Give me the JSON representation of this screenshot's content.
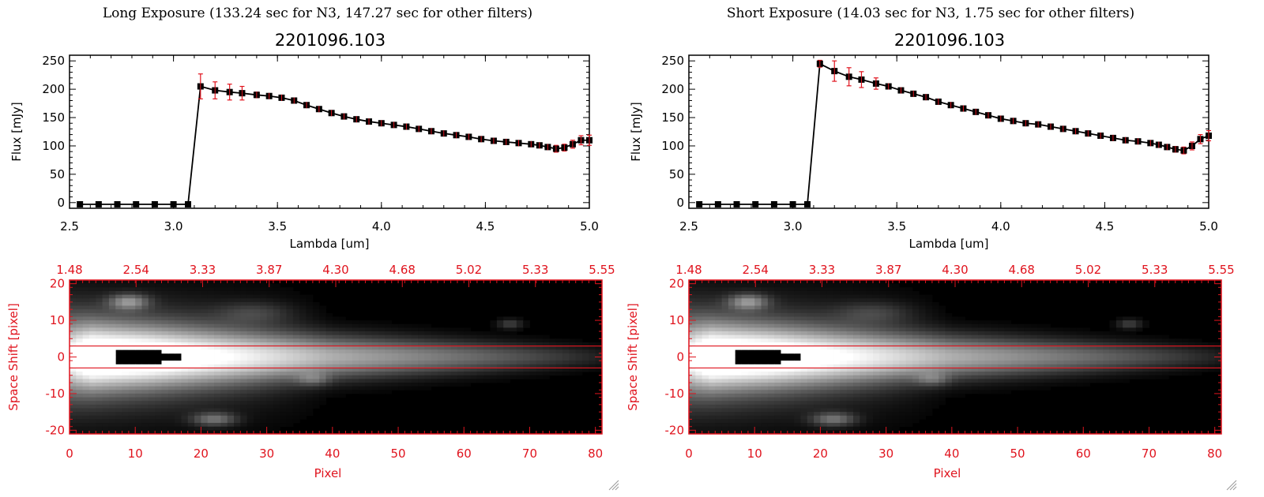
{
  "colors": {
    "error_bar": "#e0141e",
    "line": "#000000",
    "red_axis": "#e0141e",
    "image_bg": "#000000"
  },
  "panels": [
    {
      "heading": "Long Exposure (133.24 sec for N3, 147.27 sec for other filters)",
      "plot_title": "2201096.103",
      "spectrum": {
        "ylabel": "Flux [mJy]",
        "xlabel": "Lambda [um]",
        "x_ticks": [
          "2.5",
          "3.0",
          "3.5",
          "4.0",
          "4.5",
          "5.0"
        ],
        "y_ticks": [
          "0",
          "50",
          "100",
          "150",
          "200",
          "250"
        ]
      },
      "image": {
        "top_ticks": [
          "1.48",
          "2.54",
          "3.33",
          "3.87",
          "4.30",
          "4.68",
          "5.02",
          "5.33",
          "5.55"
        ],
        "y_ticks": [
          "20",
          "10",
          "0",
          "-10",
          "-20"
        ],
        "x_ticks": [
          "0",
          "10",
          "20",
          "30",
          "40",
          "50",
          "60",
          "70",
          "80"
        ],
        "ylabel": "Space Shift [pixel]",
        "xlabel": "Pixel"
      }
    },
    {
      "heading": "Short Exposure (14.03 sec for N3, 1.75 sec for other filters)",
      "plot_title": "2201096.103",
      "spectrum": {
        "ylabel": "Flux [mJy]",
        "xlabel": "Lambda [um]",
        "x_ticks": [
          "2.5",
          "3.0",
          "3.5",
          "4.0",
          "4.5",
          "5.0"
        ],
        "y_ticks": [
          "0",
          "50",
          "100",
          "150",
          "200",
          "250"
        ]
      },
      "image": {
        "top_ticks": [
          "1.48",
          "2.54",
          "3.33",
          "3.87",
          "4.30",
          "4.68",
          "5.02",
          "5.33",
          "5.55"
        ],
        "y_ticks": [
          "20",
          "10",
          "0",
          "-10",
          "-20"
        ],
        "x_ticks": [
          "0",
          "10",
          "20",
          "30",
          "40",
          "50",
          "60",
          "70",
          "80"
        ],
        "ylabel": "Space Shift [pixel]",
        "xlabel": "Pixel"
      }
    }
  ],
  "chart_data": [
    {
      "type": "line",
      "title": "2201096.103",
      "xlabel": "Lambda [um]",
      "ylabel": "Flux [mJy]",
      "xlim": [
        2.5,
        5.0
      ],
      "ylim": [
        -10,
        260
      ],
      "x": [
        2.55,
        2.64,
        2.73,
        2.82,
        2.91,
        3.0,
        3.07,
        3.13,
        3.2,
        3.27,
        3.33,
        3.4,
        3.46,
        3.52,
        3.58,
        3.64,
        3.7,
        3.76,
        3.82,
        3.88,
        3.94,
        4.0,
        4.06,
        4.12,
        4.18,
        4.24,
        4.3,
        4.36,
        4.42,
        4.48,
        4.54,
        4.6,
        4.66,
        4.72,
        4.76,
        4.8,
        4.84,
        4.88,
        4.92,
        4.96,
        5.0
      ],
      "y": [
        -3,
        -3,
        -3,
        -3,
        -3,
        -3,
        -3,
        205,
        198,
        195,
        193,
        190,
        188,
        185,
        180,
        172,
        165,
        158,
        152,
        147,
        143,
        140,
        137,
        134,
        130,
        126,
        122,
        119,
        116,
        112,
        109,
        107,
        105,
        103,
        101,
        98,
        95,
        97,
        103,
        110,
        110
      ],
      "errors": [
        2,
        2,
        2,
        2,
        2,
        2,
        2,
        22,
        15,
        14,
        12,
        5,
        4,
        4,
        4,
        4,
        4,
        4,
        4,
        4,
        4,
        4,
        4,
        4,
        4,
        4,
        4,
        4,
        4,
        4,
        4,
        4,
        4,
        4,
        4,
        4,
        6,
        6,
        7,
        8,
        9
      ]
    },
    {
      "type": "line",
      "title": "2201096.103",
      "xlabel": "Lambda [um]",
      "ylabel": "Flux [mJy]",
      "xlim": [
        2.5,
        5.0
      ],
      "ylim": [
        -10,
        260
      ],
      "x": [
        2.55,
        2.64,
        2.73,
        2.82,
        2.91,
        3.0,
        3.07,
        3.13,
        3.2,
        3.27,
        3.33,
        3.4,
        3.46,
        3.52,
        3.58,
        3.64,
        3.7,
        3.76,
        3.82,
        3.88,
        3.94,
        4.0,
        4.06,
        4.12,
        4.18,
        4.24,
        4.3,
        4.36,
        4.42,
        4.48,
        4.54,
        4.6,
        4.66,
        4.72,
        4.76,
        4.8,
        4.84,
        4.88,
        4.92,
        4.96,
        5.0
      ],
      "y": [
        -3,
        -3,
        -3,
        -3,
        -3,
        -3,
        -3,
        245,
        232,
        222,
        217,
        210,
        205,
        198,
        192,
        186,
        178,
        172,
        166,
        160,
        154,
        148,
        144,
        140,
        138,
        134,
        130,
        126,
        122,
        118,
        114,
        110,
        108,
        105,
        102,
        98,
        94,
        92,
        100,
        112,
        118
      ],
      "errors": [
        2,
        2,
        2,
        2,
        2,
        2,
        2,
        6,
        18,
        16,
        14,
        10,
        4,
        4,
        4,
        4,
        4,
        4,
        4,
        4,
        4,
        4,
        4,
        4,
        4,
        4,
        4,
        4,
        4,
        4,
        4,
        4,
        4,
        4,
        4,
        4,
        5,
        6,
        7,
        8,
        9
      ]
    },
    {
      "type": "heatmap",
      "xlabel": "Pixel",
      "ylabel": "Space Shift [pixel]",
      "xlim": [
        0,
        81
      ],
      "ylim": [
        -21,
        21
      ],
      "extraction_window": [
        -3,
        3
      ]
    },
    {
      "type": "heatmap",
      "xlabel": "Pixel",
      "ylabel": "Space Shift [pixel]",
      "xlim": [
        0,
        81
      ],
      "ylim": [
        -21,
        21
      ],
      "extraction_window": [
        -3,
        3
      ]
    }
  ]
}
